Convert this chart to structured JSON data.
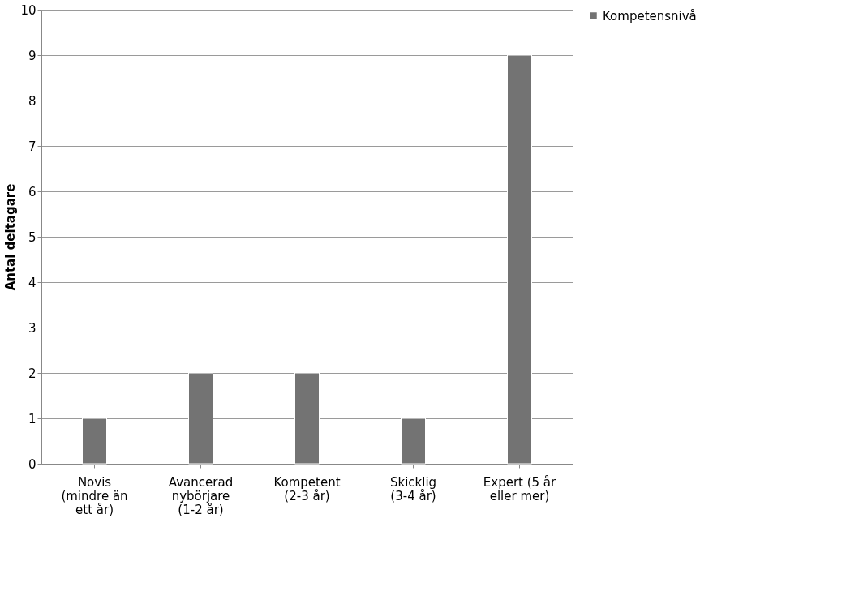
{
  "chart_data": {
    "type": "bar",
    "categories": [
      "Novis (mindre än ett år)",
      "Avancerad nybörjare (1-2 år)",
      "Kompetent (2-3 år)",
      "Skicklig (3-4 år)",
      "Expert (5 år eller mer)"
    ],
    "series": [
      {
        "name": "Kompetensnivå",
        "color": "#737373",
        "values": [
          1,
          2,
          2,
          1,
          9
        ]
      }
    ],
    "ylabel": "Antal deltagare",
    "ylim": [
      0,
      10
    ],
    "yticks": [
      0,
      1,
      2,
      3,
      4,
      5,
      6,
      7,
      8,
      9,
      10
    ],
    "grid": "y",
    "legend": "right"
  }
}
